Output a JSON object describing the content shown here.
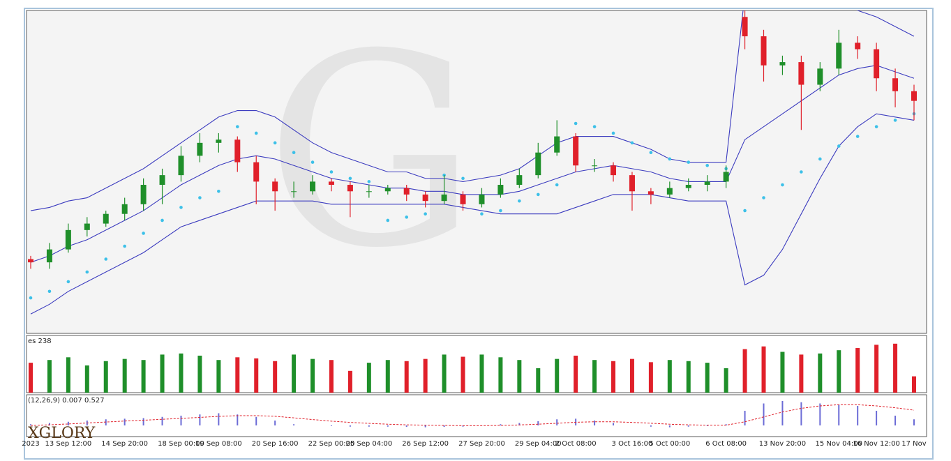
{
  "chart_data": {
    "type": "candlestick",
    "volume_label": "es 238",
    "macd_label": "(12,26,9) 0.007 0.527",
    "logo": "XGLORY",
    "categories": [
      "2023",
      null,
      "13 Sep 12:00",
      null,
      null,
      "14 Sep 20:00",
      null,
      null,
      "18 Sep 00:00",
      null,
      "19 Sep 08:00",
      null,
      null,
      "20 Sep 16:00",
      null,
      null,
      "22 Sep 00:00",
      null,
      "25 Sep 04:00",
      null,
      null,
      "26 Sep 12:00",
      null,
      null,
      "27 Sep 20:00",
      null,
      null,
      "29 Sep 04:00",
      null,
      "2 Oct 08:00",
      null,
      null,
      "3 Oct 16:00",
      null,
      "5 Oct 00:00",
      null,
      null,
      "6 Oct 08:00",
      null,
      null,
      "13 Nov 20:00",
      null,
      null,
      "15 Nov 04:00",
      null,
      "16 Nov 12:00",
      null,
      "17 Nov"
    ],
    "candles": [
      [
        23,
        24,
        20,
        22
      ],
      [
        22,
        28,
        20,
        26
      ],
      [
        26,
        34,
        25,
        32
      ],
      [
        32,
        36,
        30,
        34
      ],
      [
        34,
        38,
        33,
        37
      ],
      [
        37,
        42,
        35,
        40
      ],
      [
        40,
        48,
        38,
        46
      ],
      [
        46,
        51,
        40,
        49
      ],
      [
        49,
        58,
        47,
        55
      ],
      [
        55,
        62,
        53,
        59
      ],
      [
        59,
        62,
        56,
        60
      ],
      [
        60,
        61,
        50,
        53
      ],
      [
        53,
        55,
        40,
        47
      ],
      [
        47,
        48,
        38,
        44
      ],
      [
        44,
        47,
        42,
        44
      ],
      [
        44,
        49,
        43,
        47
      ],
      [
        47,
        48,
        44,
        46
      ],
      [
        46,
        47,
        36,
        44
      ],
      [
        44,
        46,
        42,
        44
      ],
      [
        44,
        46,
        43,
        45
      ],
      [
        45,
        46,
        41,
        43
      ],
      [
        43,
        44,
        39,
        41
      ],
      [
        41,
        49,
        40,
        43
      ],
      [
        43,
        44,
        38,
        40
      ],
      [
        40,
        45,
        39,
        43
      ],
      [
        43,
        48,
        42,
        46
      ],
      [
        46,
        51,
        45,
        49
      ],
      [
        49,
        59,
        48,
        56
      ],
      [
        56,
        66,
        55,
        61
      ],
      [
        61,
        62,
        50,
        52
      ],
      [
        52,
        54,
        50,
        52
      ],
      [
        52,
        53,
        47,
        49
      ],
      [
        49,
        50,
        38,
        44
      ],
      [
        44,
        45,
        40,
        43
      ],
      [
        43,
        47,
        42,
        45
      ],
      [
        45,
        48,
        44,
        46
      ],
      [
        46,
        49,
        44,
        47
      ],
      [
        47,
        52,
        45,
        50
      ],
      [
        98,
        102,
        88,
        92
      ],
      [
        92,
        94,
        78,
        83
      ],
      [
        83,
        86,
        80,
        84
      ],
      [
        84,
        86,
        63,
        77
      ],
      [
        77,
        84,
        75,
        82
      ],
      [
        82,
        94,
        80,
        90
      ],
      [
        90,
        92,
        85,
        88
      ],
      [
        88,
        90,
        75,
        79
      ],
      [
        79,
        82,
        70,
        75
      ],
      [
        75,
        77,
        66,
        72
      ]
    ],
    "bb_upper": [
      38,
      39,
      41,
      42,
      45,
      48,
      51,
      55,
      59,
      63,
      67,
      69,
      69,
      67,
      63,
      59,
      56,
      54,
      52,
      50,
      50,
      48,
      48,
      47,
      48,
      49,
      51,
      55,
      59,
      61,
      61,
      61,
      59,
      57,
      54,
      53,
      53,
      53,
      105,
      110,
      110,
      107,
      104,
      102,
      100,
      98,
      95,
      92
    ],
    "bb_middle": [
      22,
      24,
      27,
      29,
      32,
      35,
      38,
      42,
      46,
      49,
      52,
      54,
      55,
      54,
      52,
      50,
      48,
      47,
      46,
      45,
      45,
      44,
      44,
      43,
      43,
      43,
      44,
      46,
      48,
      50,
      51,
      52,
      51,
      50,
      48,
      47,
      47,
      47,
      60,
      64,
      68,
      72,
      76,
      80,
      82,
      83,
      81,
      79
    ],
    "bb_lower": [
      6,
      9,
      13,
      16,
      19,
      22,
      25,
      29,
      33,
      35,
      37,
      39,
      41,
      41,
      41,
      41,
      40,
      40,
      40,
      40,
      40,
      40,
      40,
      39,
      38,
      37,
      37,
      37,
      37,
      39,
      41,
      43,
      43,
      43,
      42,
      41,
      41,
      41,
      15,
      18,
      26,
      37,
      48,
      58,
      64,
      68,
      67,
      66
    ],
    "sar": [
      11,
      13,
      16,
      19,
      23,
      27,
      31,
      35,
      39,
      42,
      44,
      64,
      62,
      59,
      56,
      53,
      50,
      48,
      47,
      35,
      36,
      37,
      49,
      48,
      37,
      38,
      41,
      43,
      46,
      65,
      64,
      62,
      59,
      56,
      54,
      53,
      52,
      51,
      38,
      42,
      46,
      50,
      54,
      58,
      61,
      64,
      66,
      68
    ],
    "volume": [
      55,
      60,
      65,
      50,
      58,
      62,
      60,
      70,
      72,
      68,
      60,
      65,
      63,
      58,
      70,
      62,
      60,
      40,
      55,
      60,
      58,
      62,
      70,
      66,
      70,
      65,
      60,
      45,
      62,
      68,
      60,
      58,
      62,
      56,
      60,
      58,
      55,
      45,
      80,
      85,
      75,
      70,
      72,
      78,
      82,
      88,
      90,
      30
    ],
    "macd_hist": [
      0.1,
      0.2,
      0.3,
      0.4,
      0.5,
      0.55,
      0.6,
      0.7,
      0.8,
      0.9,
      1.0,
      0.9,
      0.7,
      0.4,
      0.1,
      0.0,
      -0.05,
      -0.1,
      -0.1,
      -0.1,
      -0.12,
      -0.15,
      -0.12,
      -0.1,
      0.0,
      0.1,
      0.2,
      0.35,
      0.5,
      0.55,
      0.4,
      0.2,
      0.0,
      -0.1,
      -0.15,
      -0.1,
      -0.05,
      0.1,
      1.2,
      1.8,
      2.0,
      1.9,
      1.8,
      1.7,
      1.6,
      1.2,
      0.8,
      0.5
    ],
    "macd_signal": [
      0,
      0.05,
      0.12,
      0.2,
      0.28,
      0.36,
      0.43,
      0.5,
      0.58,
      0.66,
      0.74,
      0.8,
      0.8,
      0.75,
      0.62,
      0.48,
      0.35,
      0.25,
      0.17,
      0.1,
      0.05,
      0.02,
      0,
      -0.02,
      -0.02,
      0,
      0.04,
      0.1,
      0.18,
      0.26,
      0.3,
      0.3,
      0.25,
      0.18,
      0.1,
      0.05,
      0.02,
      0.02,
      0.3,
      0.7,
      1.1,
      1.4,
      1.6,
      1.7,
      1.7,
      1.6,
      1.45,
      1.25
    ],
    "ylim": [
      0,
      100
    ],
    "volume_ylim": [
      0,
      100
    ],
    "macd_ylim": [
      -0.8,
      2.4
    ],
    "up_color": "#1f8f2a",
    "down_color": "#e0202a",
    "band_color": "#3b3bbf",
    "sar_color": "#3cc0e8",
    "hist_color": "#6b6bd6",
    "signal_color": "#e0202a"
  }
}
